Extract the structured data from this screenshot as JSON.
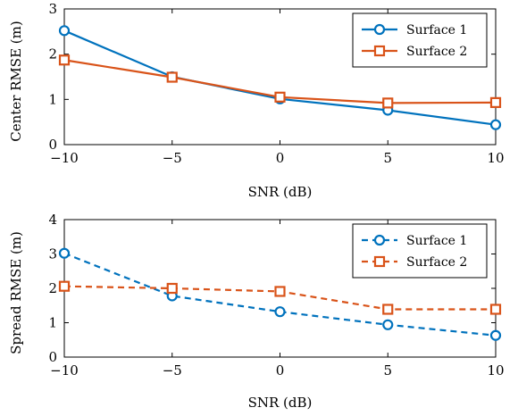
{
  "chart_data": [
    {
      "type": "line",
      "title": "",
      "xlabel": "SNR (dB)",
      "ylabel": "Center RMSE (m)",
      "x": [
        -10,
        -5,
        0,
        5,
        10
      ],
      "xlim": [
        -10,
        10
      ],
      "ylim": [
        0,
        3
      ],
      "xticks": [
        -10,
        -5,
        0,
        5,
        10
      ],
      "yticks": [
        0,
        1,
        2,
        3
      ],
      "xtick_labels": [
        "−10",
        "−5",
        "0",
        "5",
        "10"
      ],
      "ytick_labels": [
        "0",
        "1",
        "2",
        "3"
      ],
      "grid": false,
      "legend_position": "top-right",
      "series": [
        {
          "name": "Surface 1",
          "values": [
            2.52,
            1.5,
            1.01,
            0.76,
            0.44
          ],
          "color": "#0072BD",
          "marker": "circle",
          "line_style": "solid"
        },
        {
          "name": "Surface 2",
          "values": [
            1.87,
            1.49,
            1.05,
            0.92,
            0.93
          ],
          "color": "#D95319",
          "marker": "square",
          "line_style": "solid"
        }
      ]
    },
    {
      "type": "line",
      "title": "",
      "xlabel": "SNR (dB)",
      "ylabel": "Spread RMSE (m)",
      "x": [
        -10,
        -5,
        0,
        5,
        10
      ],
      "xlim": [
        -10,
        10
      ],
      "ylim": [
        0,
        4
      ],
      "xticks": [
        -10,
        -5,
        0,
        5,
        10
      ],
      "yticks": [
        0,
        1,
        2,
        3,
        4
      ],
      "xtick_labels": [
        "−10",
        "−5",
        "0",
        "5",
        "10"
      ],
      "ytick_labels": [
        "0",
        "1",
        "2",
        "3",
        "4"
      ],
      "grid": false,
      "legend_position": "top-right",
      "series": [
        {
          "name": "Surface 1",
          "values": [
            3.02,
            1.78,
            1.32,
            0.94,
            0.63
          ],
          "color": "#0072BD",
          "marker": "circle",
          "line_style": "dashed"
        },
        {
          "name": "Surface 2",
          "values": [
            2.06,
            2.0,
            1.91,
            1.39,
            1.39
          ],
          "color": "#D95319",
          "marker": "square",
          "line_style": "dashed"
        }
      ]
    }
  ]
}
